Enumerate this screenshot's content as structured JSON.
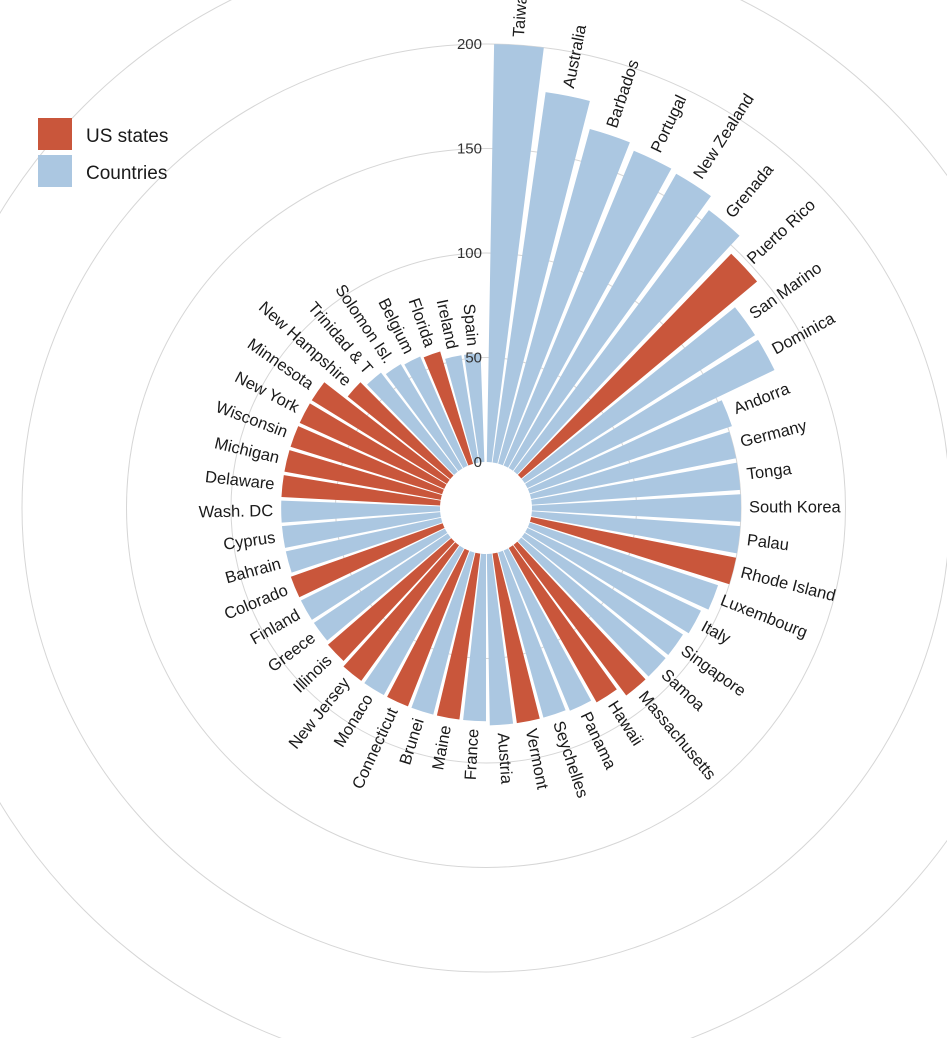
{
  "chart_data": {
    "type": "bar",
    "layout": "radial",
    "yticks": [
      0,
      50,
      100,
      150,
      200
    ],
    "legend": {
      "placement": "top-left",
      "entries": [
        {
          "label": "US states",
          "color": "#c9563b"
        },
        {
          "label": "Countries",
          "color": "#abc7e1"
        }
      ]
    },
    "colors": {
      "us_state": "#c9563b",
      "country": "#abc7e1",
      "grid": "#d6d6d6"
    },
    "bars": [
      {
        "label": "Taiwan",
        "value": 200,
        "group": "country"
      },
      {
        "label": "Australia",
        "value": 179,
        "group": "country"
      },
      {
        "label": "Barbados",
        "value": 166,
        "group": "country"
      },
      {
        "label": "Portugal",
        "value": 163,
        "group": "country"
      },
      {
        "label": "New Zealand",
        "value": 162,
        "group": "country"
      },
      {
        "label": "Grenada",
        "value": 156,
        "group": "country"
      },
      {
        "label": "Puerto Rico",
        "value": 147,
        "group": "us_state"
      },
      {
        "label": "San Marino",
        "value": 131,
        "group": "country"
      },
      {
        "label": "Dominica",
        "value": 131,
        "group": "country"
      },
      {
        "label": "Andorra",
        "value": 102,
        "group": "country"
      },
      {
        "label": "Germany",
        "value": 100,
        "group": "country"
      },
      {
        "label": "Tonga",
        "value": 100,
        "group": "country"
      },
      {
        "label": "South Korea",
        "value": 100,
        "group": "country"
      },
      {
        "label": "Palau",
        "value": 100,
        "group": "country"
      },
      {
        "label": "Rhode Island",
        "value": 100,
        "group": "us_state"
      },
      {
        "label": "Luxembourg",
        "value": 95,
        "group": "country"
      },
      {
        "label": "Italy",
        "value": 92,
        "group": "country"
      },
      {
        "label": "Singapore",
        "value": 90,
        "group": "country"
      },
      {
        "label": "Samoa",
        "value": 90,
        "group": "country"
      },
      {
        "label": "Massachusetts",
        "value": 90,
        "group": "us_state"
      },
      {
        "label": "Hawaii",
        "value": 85,
        "group": "us_state"
      },
      {
        "label": "Panama",
        "value": 83,
        "group": "country"
      },
      {
        "label": "Seychelles",
        "value": 82,
        "group": "country"
      },
      {
        "label": "Vermont",
        "value": 82,
        "group": "us_state"
      },
      {
        "label": "Austria",
        "value": 82,
        "group": "country"
      },
      {
        "label": "France",
        "value": 80,
        "group": "country"
      },
      {
        "label": "Maine",
        "value": 80,
        "group": "us_state"
      },
      {
        "label": "Brunei",
        "value": 80,
        "group": "country"
      },
      {
        "label": "Connecticut",
        "value": 80,
        "group": "us_state"
      },
      {
        "label": "Monaco",
        "value": 80,
        "group": "country"
      },
      {
        "label": "New Jersey",
        "value": 80,
        "group": "us_state"
      },
      {
        "label": "Illinois",
        "value": 78,
        "group": "us_state"
      },
      {
        "label": "Greece",
        "value": 77,
        "group": "country"
      },
      {
        "label": "Finland",
        "value": 77,
        "group": "country"
      },
      {
        "label": "Colorado",
        "value": 77,
        "group": "us_state"
      },
      {
        "label": "Bahrain",
        "value": 76,
        "group": "country"
      },
      {
        "label": "Cyprus",
        "value": 76,
        "group": "country"
      },
      {
        "label": "Wash. DC",
        "value": 76,
        "group": "country"
      },
      {
        "label": "Delaware",
        "value": 76,
        "group": "us_state"
      },
      {
        "label": "Michigan",
        "value": 76,
        "group": "us_state"
      },
      {
        "label": "Wisconsin",
        "value": 76,
        "group": "us_state"
      },
      {
        "label": "New York",
        "value": 76,
        "group": "us_state"
      },
      {
        "label": "Minnesota",
        "value": 76,
        "group": "us_state"
      },
      {
        "label": "New Hampshire",
        "value": 63,
        "group": "us_state"
      },
      {
        "label": "Trinidad & T",
        "value": 60,
        "group": "country"
      },
      {
        "label": "Solomon Isl.",
        "value": 58,
        "group": "country"
      },
      {
        "label": "Belgium",
        "value": 57,
        "group": "country"
      },
      {
        "label": "Florida",
        "value": 56,
        "group": "us_state"
      },
      {
        "label": "Ireland",
        "value": 52,
        "group": "country"
      },
      {
        "label": "Spain",
        "value": 52,
        "group": "country"
      }
    ]
  }
}
